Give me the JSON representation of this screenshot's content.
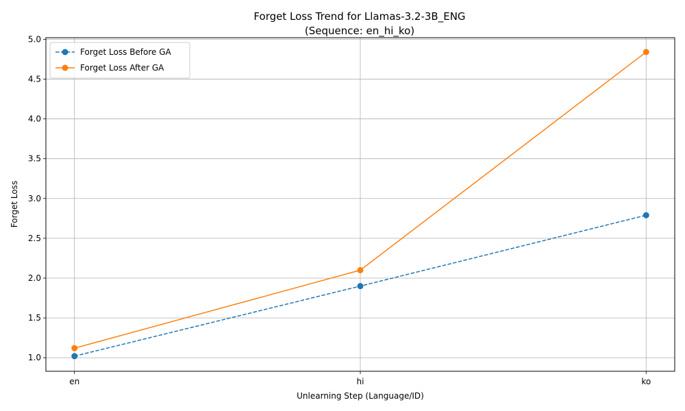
{
  "chart_data": {
    "type": "line",
    "title": "Forget Loss Trend for Llamas-3.2-3B_ENG",
    "subtitle": "(Sequence: en_hi_ko)",
    "xlabel": "Unlearning Step (Language/ID)",
    "ylabel": "Forget Loss",
    "categories": [
      "en",
      "hi",
      "ko"
    ],
    "ylim": [
      0.83,
      5.02
    ],
    "yticks": [
      "1.0",
      "1.5",
      "2.0",
      "2.5",
      "3.0",
      "3.5",
      "4.0",
      "4.5",
      "5.0"
    ],
    "grid": true,
    "legend_position": "upper-left",
    "series": [
      {
        "name": "Forget Loss Before GA",
        "values": [
          1.02,
          1.9,
          2.79
        ],
        "color": "#1f77b4",
        "line_style": "dashed",
        "marker": "circle"
      },
      {
        "name": "Forget Loss After GA",
        "values": [
          1.12,
          2.1,
          4.84
        ],
        "color": "#ff7f0e",
        "line_style": "solid",
        "marker": "circle"
      }
    ]
  }
}
